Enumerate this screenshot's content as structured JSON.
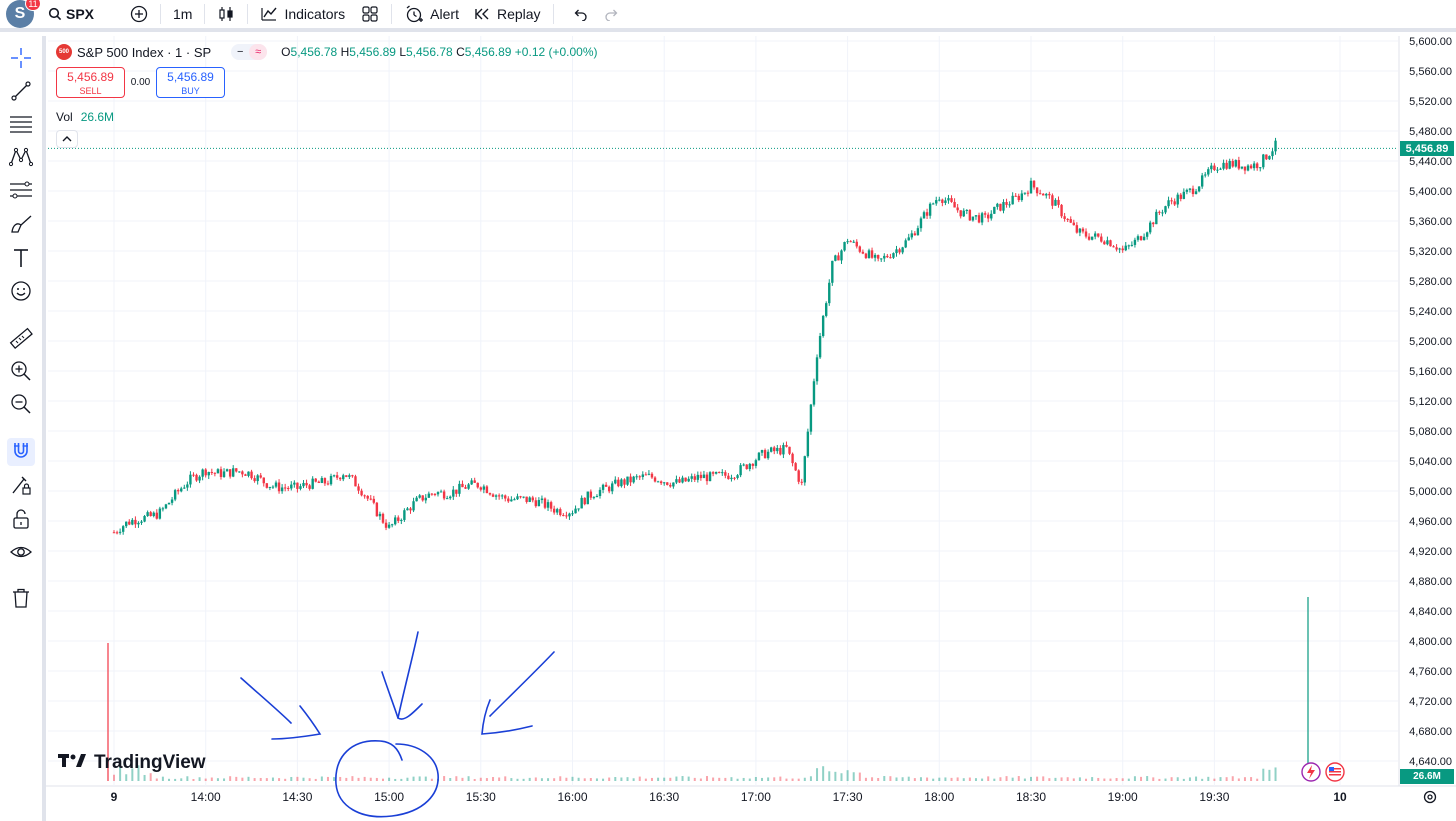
{
  "topbar": {
    "avatar_letter": "S",
    "notifications": "11",
    "symbol": "SPX",
    "interval": "1m",
    "indicators_label": "Indicators",
    "alert_label": "Alert",
    "replay_label": "Replay"
  },
  "legend": {
    "logo_text": "500",
    "title": "S&P 500 Index · 1 · SP",
    "open_key": "O",
    "open": "5,456.78",
    "high_key": "H",
    "high": "5,456.89",
    "low_key": "L",
    "low": "5,456.78",
    "close_key": "C",
    "close": "5,456.89",
    "change": "+0.12 (+0.00%)",
    "sell_price": "5,456.89",
    "sell_label": "SELL",
    "spread": "0.00",
    "buy_price": "5,456.89",
    "buy_label": "BUY",
    "vol_label": "Vol",
    "vol_value": "26.6M"
  },
  "price_axis": [
    "5,600.00",
    "5,560.00",
    "5,520.00",
    "5,480.00",
    "5,440.00",
    "5,400.00",
    "5,360.00",
    "5,320.00",
    "5,280.00",
    "5,240.00",
    "5,200.00",
    "5,160.00",
    "5,120.00",
    "5,080.00",
    "5,040.00",
    "5,000.00",
    "4,960.00",
    "4,920.00",
    "4,880.00",
    "4,840.00",
    "4,800.00",
    "4,760.00",
    "4,720.00",
    "4,680.00",
    "4,640.00"
  ],
  "time_axis": [
    "9",
    "14:00",
    "14:30",
    "15:00",
    "15:30",
    "16:00",
    "16:30",
    "17:00",
    "17:30",
    "18:00",
    "18:30",
    "19:00",
    "19:30",
    "10"
  ],
  "last_price_tag": "5,456.89",
  "volume_tag": "26.6M",
  "watermark": "TradingView",
  "colors": {
    "up": "#089981",
    "down": "#f23645",
    "annotation": "#1a3fd6"
  },
  "chart_data": {
    "type": "line",
    "title": "S&P 500 Index · 1 · SP",
    "xlabel": "",
    "ylabel": "",
    "ylim": [
      4620,
      5610
    ],
    "x": [
      "13:30",
      "13:45",
      "14:00",
      "14:15",
      "14:30",
      "14:45",
      "15:00",
      "15:15",
      "15:30",
      "15:45",
      "16:00",
      "16:15",
      "16:30",
      "16:45",
      "17:00",
      "17:10",
      "17:15",
      "17:20",
      "17:25",
      "17:30",
      "17:40",
      "17:50",
      "18:00",
      "18:15",
      "18:30",
      "18:45",
      "19:00",
      "19:15",
      "19:30",
      "19:45",
      "19:50"
    ],
    "values": [
      4945,
      4975,
      5030,
      5020,
      5000,
      5025,
      4955,
      5000,
      5005,
      4985,
      4975,
      5015,
      5015,
      5015,
      5040,
      5060,
      5010,
      5180,
      5300,
      5340,
      5300,
      5340,
      5390,
      5360,
      5410,
      5350,
      5320,
      5380,
      5430,
      5440,
      5456.89
    ],
    "grid": true,
    "legend": "top-left"
  }
}
